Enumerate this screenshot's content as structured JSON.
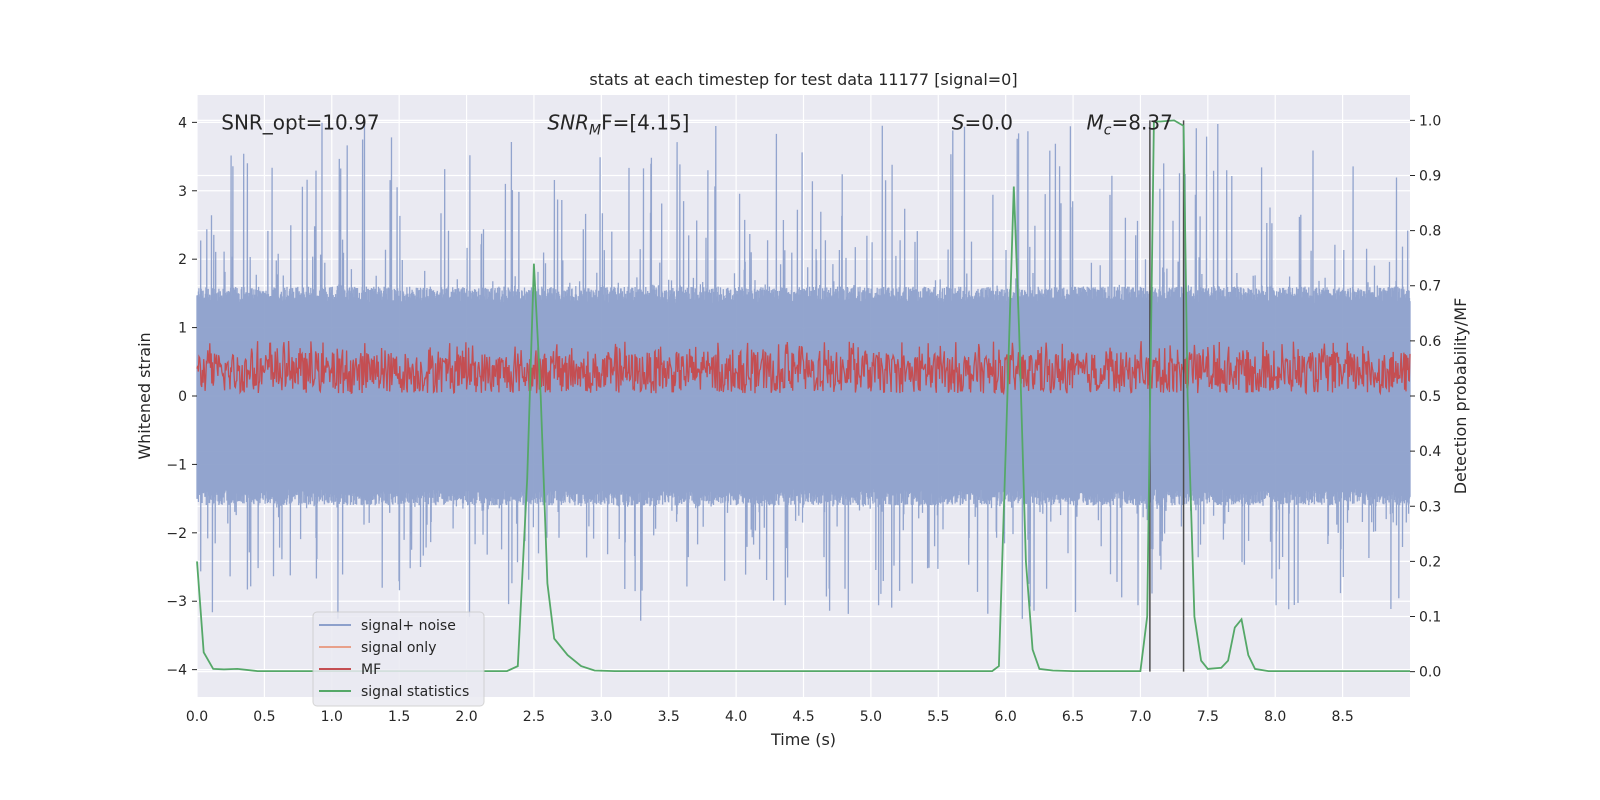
{
  "chart_data": {
    "type": "line",
    "title": "stats at each timestep for test data 11177 [signal=0]",
    "xlabel": "Time (s)",
    "ylabel": "Whitened strain",
    "y2label": "Detection probability/MF",
    "xlim": [
      0,
      9
    ],
    "ylim": [
      -4.4,
      4.4
    ],
    "y2lim": [
      -0.046,
      1.046
    ],
    "xticks": [
      0.0,
      0.5,
      1.0,
      1.5,
      2.0,
      2.5,
      3.0,
      3.5,
      4.0,
      4.5,
      5.0,
      5.5,
      6.0,
      6.5,
      7.0,
      7.5,
      8.0,
      8.5
    ],
    "xtick_labels": [
      "0.0",
      "0.5",
      "1.0",
      "1.5",
      "2.0",
      "2.5",
      "3.0",
      "3.5",
      "4.0",
      "4.5",
      "5.0",
      "5.5",
      "6.0",
      "6.5",
      "7.0",
      "7.5",
      "8.0",
      "8.5"
    ],
    "yticks": [
      4,
      3,
      2,
      1,
      0,
      -1,
      -2,
      -3,
      -4
    ],
    "ytick_labels": [
      "4",
      "3",
      "2",
      "1",
      "0",
      "−1",
      "−2",
      "−3",
      "−4"
    ],
    "y2ticks": [
      1.0,
      0.9,
      0.8,
      0.7,
      0.6,
      0.5,
      0.4,
      0.3,
      0.2,
      0.1,
      0.0
    ],
    "y2tick_labels": [
      "1.0",
      "0.9",
      "0.8",
      "0.7",
      "0.6",
      "0.5",
      "0.4",
      "0.3",
      "0.2",
      "0.1",
      "0.0"
    ],
    "annotations": [
      {
        "id": "snr-opt",
        "text": "SNR_opt=10.97",
        "x": 0.18,
        "y": 4.0
      },
      {
        "id": "snr-mf",
        "text": "SNR",
        "sub": "M",
        "tail": "F=[4.15]",
        "x": 2.6,
        "y": 4.0
      },
      {
        "id": "s-value",
        "text": "S",
        "tail": "=0.0",
        "x": 5.6,
        "y": 4.0
      },
      {
        "id": "mc-value",
        "text": "M",
        "sub": "c",
        "tail": "=8.37",
        "x": 6.6,
        "y": 4.0
      }
    ],
    "series": [
      {
        "name": "signal+ noise",
        "color": "#8da0cb",
        "axis": "left",
        "envelope": {
          "band_low": -1.6,
          "band_high": 1.6,
          "spike_max": 4.0,
          "spike_min": -3.3
        }
      },
      {
        "name": "signal only",
        "color": "#e8a08a",
        "axis": "left",
        "values": []
      },
      {
        "name": "MF",
        "color": "#c44e52",
        "axis": "right",
        "envelope": {
          "low": 0.505,
          "high": 0.58,
          "spike_max": 0.6
        }
      },
      {
        "name": "signal statistics",
        "color": "#55a868",
        "axis": "right",
        "x": [
          0.0,
          0.05,
          0.12,
          0.2,
          0.3,
          0.45,
          1.0,
          2.0,
          2.3,
          2.38,
          2.45,
          2.5,
          2.55,
          2.6,
          2.65,
          2.75,
          2.85,
          2.95,
          3.1,
          4.0,
          5.0,
          5.9,
          5.95,
          6.0,
          6.06,
          6.1,
          6.15,
          6.2,
          6.25,
          6.35,
          6.5,
          6.7,
          7.0,
          7.05,
          7.1,
          7.15,
          7.25,
          7.32,
          7.35,
          7.4,
          7.45,
          7.5,
          7.6,
          7.65,
          7.7,
          7.75,
          7.8,
          7.85,
          7.95,
          8.2,
          9.0
        ],
        "values": [
          0.2,
          0.035,
          0.005,
          0.004,
          0.005,
          0.001,
          0.001,
          0.001,
          0.001,
          0.01,
          0.35,
          0.74,
          0.5,
          0.16,
          0.06,
          0.03,
          0.01,
          0.002,
          0.001,
          0.001,
          0.001,
          0.001,
          0.01,
          0.4,
          0.88,
          0.62,
          0.2,
          0.04,
          0.005,
          0.002,
          0.001,
          0.001,
          0.001,
          0.1,
          0.998,
          0.998,
          1.0,
          0.99,
          0.5,
          0.1,
          0.02,
          0.005,
          0.007,
          0.02,
          0.08,
          0.095,
          0.03,
          0.005,
          0.001,
          0.001,
          0.001
        ]
      }
    ],
    "vlines": [
      7.07,
      7.32
    ],
    "vline_color": "#4d4d4d",
    "legend": {
      "location": "lower-left",
      "entries": [
        "signal+ noise",
        "signal only",
        "MF",
        "signal statistics"
      ]
    },
    "grid": true,
    "background": "#eaeaf2"
  }
}
